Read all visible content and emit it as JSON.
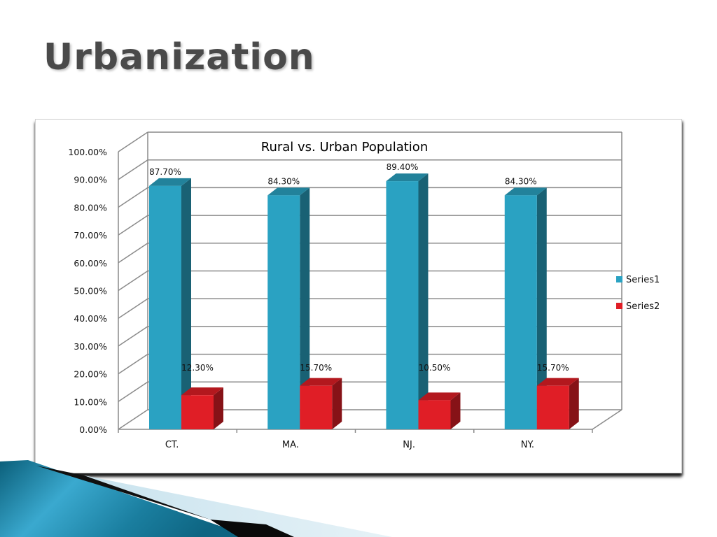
{
  "slide": {
    "title": "Urbanization"
  },
  "chart_data": {
    "type": "bar",
    "title": "Rural vs. Urban Population",
    "categories": [
      "CT.",
      "MA.",
      "NJ.",
      "NY."
    ],
    "series": [
      {
        "name": "Series1",
        "color": "#2aa2c2",
        "values": [
          87.7,
          84.3,
          89.4,
          84.3
        ],
        "labels": [
          "87.70%",
          "84.30%",
          "89.40%",
          "84.30%"
        ]
      },
      {
        "name": "Series2",
        "color": "#e01e26",
        "values": [
          12.3,
          15.7,
          10.5,
          15.7
        ],
        "labels": [
          "12.30%",
          "15.70%",
          "10.50%",
          "15.70%"
        ]
      }
    ],
    "ylim": [
      0,
      100
    ],
    "y_ticks": [
      "0.00%",
      "10.00%",
      "20.00%",
      "30.00%",
      "40.00%",
      "50.00%",
      "60.00%",
      "70.00%",
      "80.00%",
      "90.00%",
      "100.00%"
    ],
    "grid": true,
    "legend_position": "right",
    "style": "3d-column"
  }
}
